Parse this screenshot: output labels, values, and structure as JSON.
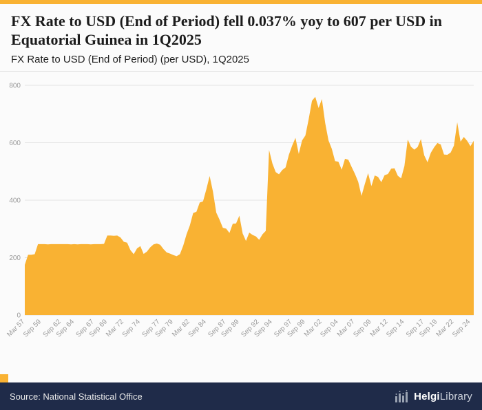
{
  "accent_color": "#f9b233",
  "header": {
    "title": "FX Rate to USD (End of Period) fell 0.037% yoy to 607 per USD in Equatorial Guinea in 1Q2025",
    "subtitle": "FX Rate to USD (End of Period) (per USD), 1Q2025"
  },
  "chart_data": {
    "type": "area",
    "title": "FX Rate to USD (End of Period) (per USD), 1Q2025",
    "xlabel": "",
    "ylabel": "",
    "ylim": [
      0,
      800
    ],
    "yticks": [
      0,
      200,
      400,
      600,
      800
    ],
    "grid": true,
    "legend": "none",
    "area_color": "#f9b233",
    "axis_label_color": "#9a9a9a",
    "grid_color": "#e3e3e3",
    "x_start": "Mar 1957",
    "x_step_months": 6,
    "values": [
      175,
      210,
      210,
      212,
      247,
      247,
      247,
      246,
      247,
      247,
      247,
      247,
      247,
      247,
      246,
      247,
      246,
      247,
      247,
      247,
      246,
      247,
      247,
      247,
      248,
      277,
      277,
      276,
      277,
      270,
      255,
      252,
      226,
      212,
      232,
      240,
      213,
      221,
      236,
      246,
      249,
      245,
      230,
      218,
      214,
      209,
      205,
      212,
      242,
      281,
      312,
      355,
      360,
      392,
      396,
      438,
      484,
      430,
      357,
      332,
      304,
      301,
      286,
      318,
      319,
      346,
      284,
      258,
      287,
      279,
      274,
      262,
      281,
      293,
      575,
      528,
      498,
      490,
      505,
      514,
      558,
      590,
      617,
      561,
      608,
      625,
      682,
      746,
      760,
      721,
      752,
      669,
      608,
      579,
      536,
      534,
      506,
      544,
      541,
      516,
      492,
      464,
      415,
      456,
      494,
      449,
      486,
      481,
      463,
      487,
      491,
      510,
      511,
      485,
      476,
      519,
      611,
      586,
      576,
      585,
      613,
      556,
      532,
      565,
      584,
      599,
      594,
      559,
      558,
      566,
      590,
      671,
      604,
      620,
      607,
      588,
      607
    ],
    "tick_labels": [
      "Mar 57",
      "Sep 59",
      "Sep 62",
      "Sep 64",
      "Sep 67",
      "Sep 69",
      "Mar 72",
      "Sep 74",
      "Sep 77",
      "Sep 79",
      "Mar 82",
      "Sep 84",
      "Sep 87",
      "Sep 89",
      "Sep 92",
      "Sep 94",
      "Sep 97",
      "Sep 99",
      "Mar 02",
      "Sep 04",
      "Mar 07",
      "Sep 09",
      "Mar 12",
      "Sep 14",
      "Sep 17",
      "Sep 19",
      "Mar 22",
      "Sep 24"
    ],
    "tick_indices": [
      0,
      5,
      11,
      15,
      21,
      25,
      30,
      35,
      41,
      45,
      50,
      55,
      61,
      65,
      71,
      75,
      81,
      85,
      90,
      95,
      100,
      105,
      110,
      115,
      121,
      125,
      130,
      135
    ]
  },
  "footer": {
    "source": "Source: National Statistical Office",
    "logo_text_bold": "Helgi",
    "logo_text_regular": "Library"
  }
}
